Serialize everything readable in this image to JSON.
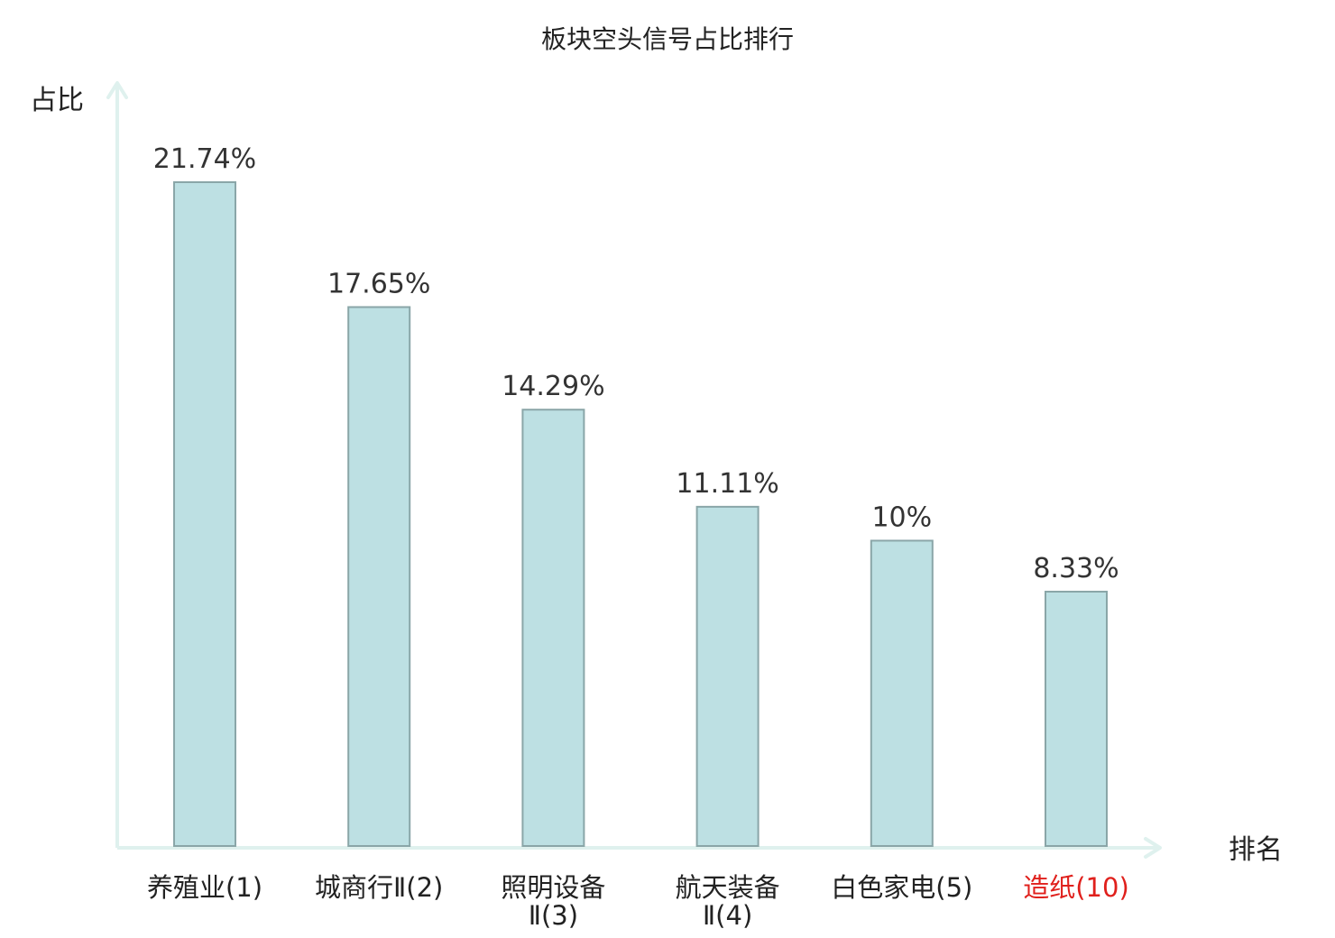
{
  "chart_data": {
    "type": "bar",
    "title": "板块空头信号占比排行",
    "ylabel": "占比",
    "xlabel": "排名",
    "categories": [
      {
        "name": "养殖业",
        "rank": "(1)",
        "lines": [
          "养殖业(1)"
        ],
        "highlight": false
      },
      {
        "name": "城商行Ⅱ",
        "rank": "(2)",
        "lines": [
          "城商行Ⅱ(2)"
        ],
        "highlight": false
      },
      {
        "name": "照明设备Ⅱ",
        "rank": "(3)",
        "lines": [
          "照明设备",
          "Ⅱ(3)"
        ],
        "highlight": false
      },
      {
        "name": "航天装备Ⅱ",
        "rank": "(4)",
        "lines": [
          "航天装备",
          "Ⅱ(4)"
        ],
        "highlight": false
      },
      {
        "name": "白色家电",
        "rank": "(5)",
        "lines": [
          "白色家电(5)"
        ],
        "highlight": false
      },
      {
        "name": "造纸",
        "rank": "(10)",
        "lines": [
          "造纸(10)"
        ],
        "highlight": true
      }
    ],
    "values": [
      21.74,
      17.65,
      14.29,
      11.11,
      10,
      8.33
    ],
    "value_labels": [
      "21.74%",
      "17.65%",
      "14.29%",
      "11.11%",
      "10%",
      "8.33%"
    ],
    "unit": "%",
    "ylim": [
      0,
      21.74
    ],
    "grid": false,
    "legend": "none",
    "colors": {
      "bar_fill": "#bde0e3",
      "bar_stroke": "#8aa6a8",
      "axis": "#dff1ee",
      "text": "#222222",
      "highlight_text": "#e0201c"
    }
  }
}
